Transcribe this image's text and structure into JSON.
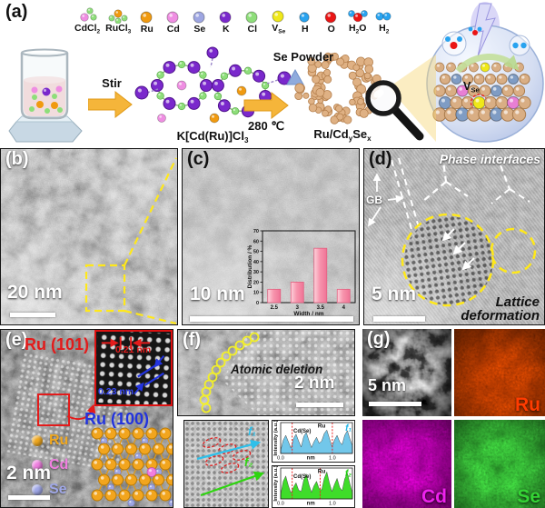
{
  "colors": {
    "ru": "#f09a10",
    "cd": "#ef8ee2",
    "se": "#9ea6e2",
    "k": "#7a28cc",
    "cl": "#8ede7a",
    "vse": "#efe81a",
    "h": "#29a3ef",
    "o": "#ea1515",
    "tan": "#dfb184",
    "annotation_yellow": "#ffe81a",
    "annotation_red": "#e31b1b",
    "annotation_blue": "#2233dd"
  },
  "panel_a": {
    "label": "(a)",
    "legend": [
      {
        "id": "cdcl2",
        "parts": [
          {
            "t": "CdCl"
          },
          {
            "t": "2",
            "sub": true
          }
        ]
      },
      {
        "id": "rucl3",
        "parts": [
          {
            "t": "RuCl"
          },
          {
            "t": "3",
            "sub": true
          }
        ]
      },
      {
        "id": "ru",
        "parts": [
          {
            "t": "Ru"
          }
        ]
      },
      {
        "id": "cd",
        "parts": [
          {
            "t": "Cd"
          }
        ]
      },
      {
        "id": "se",
        "parts": [
          {
            "t": "Se"
          }
        ]
      },
      {
        "id": "k",
        "parts": [
          {
            "t": "K"
          }
        ]
      },
      {
        "id": "cl",
        "parts": [
          {
            "t": "Cl"
          }
        ]
      },
      {
        "id": "vse",
        "parts": [
          {
            "t": "V"
          },
          {
            "t": "Se",
            "sub": true
          }
        ]
      },
      {
        "id": "h",
        "parts": [
          {
            "t": "H"
          }
        ]
      },
      {
        "id": "o",
        "parts": [
          {
            "t": "O"
          }
        ]
      },
      {
        "id": "h2o",
        "parts": [
          {
            "t": "H"
          },
          {
            "t": "2",
            "sub": true
          },
          {
            "t": "O"
          }
        ]
      },
      {
        "id": "h2",
        "parts": [
          {
            "t": "H"
          },
          {
            "t": "2",
            "sub": true
          }
        ]
      }
    ],
    "stir_label": "Stir",
    "intermediate_parts": [
      {
        "t": "K[Cd(Ru)]Cl"
      },
      {
        "t": "3",
        "sub": true
      }
    ],
    "se_powder_label": "Se Powder",
    "temperature_label": "280 ℃",
    "product_parts": [
      {
        "t": "Ru/Cd"
      },
      {
        "t": "y",
        "sub": true
      },
      {
        "t": "Se"
      },
      {
        "t": "x",
        "sub": true
      }
    ],
    "vacancy_parts": [
      {
        "t": "V"
      },
      {
        "t": "Se",
        "sub": true
      }
    ]
  },
  "panel_b": {
    "label": "(b)",
    "scale_bar": "20 nm"
  },
  "panel_c": {
    "label": "(c)",
    "scale_bar": "10 nm"
  },
  "panel_d": {
    "label": "(d)",
    "scale_bar": "5 nm",
    "phase_interfaces": "Phase interfaces",
    "grain_boundary": "GB",
    "lattice_deformation_line1": "Lattice",
    "lattice_deformation_line2": "deformation"
  },
  "panel_e": {
    "label": "(e)",
    "scale_bar": "2 nm",
    "plane_red": "Ru (101)",
    "spacing_red": "0.21 nm",
    "spacing_blue": "0.23 nm",
    "plane_blue": "Ru (100)",
    "legend": [
      {
        "label": "Ru",
        "color": "#f0a820"
      },
      {
        "label": "Cd",
        "color": "#f07fe0"
      },
      {
        "label": "Se",
        "color": "#a0a8e8"
      }
    ]
  },
  "panel_f": {
    "label": "(f)",
    "scale_bar": "2 nm",
    "atomic_deletion": "Atomic deletion"
  },
  "panel_g": {
    "label": "(g)",
    "scale_bar": "5 nm",
    "maps": [
      {
        "label": "Ru",
        "color": "#ff3c00"
      },
      {
        "label": "Cd",
        "color": "#ee22ee"
      },
      {
        "label": "Se",
        "color": "#35d435"
      }
    ]
  },
  "chart_data": [
    {
      "type": "bar",
      "categories": [
        "2.5",
        "3",
        "3.5",
        "4"
      ],
      "values": [
        13,
        20,
        53,
        13
      ],
      "title": "",
      "xlabel": "Width / nm",
      "ylabel": "Distribution / %",
      "ylim": [
        0,
        70
      ],
      "yticks": [
        0,
        10,
        20,
        30,
        40,
        50,
        60,
        70
      ],
      "bar_color": "#f795ad",
      "bar_edge": "#e0607f",
      "grid": false,
      "legend_position": "none"
    },
    {
      "type": "area",
      "name": "line profile f1",
      "series_label": "f₁",
      "color": "#72c7ea",
      "label_color": "#1fb6e8",
      "ylabel": "Intensity (a.u.)",
      "xlabel": "nm",
      "xticks": [
        "0.0",
        "1.0"
      ],
      "peak_labels": [
        "Cd(Se)",
        "Ru"
      ],
      "vlines": [
        0.16,
        0.72
      ],
      "values": [
        0.1,
        0.45,
        0.62,
        0.4,
        0.18,
        0.5,
        0.66,
        0.42,
        0.22,
        0.58,
        0.72,
        0.45,
        0.2,
        0.4,
        0.55,
        0.35,
        0.42,
        0.68,
        0.8,
        0.52,
        0.24,
        0.46,
        0.62,
        0.4,
        0.3,
        0.62,
        0.78,
        0.5,
        0.26
      ]
    },
    {
      "type": "area",
      "name": "line profile f2",
      "series_label": "f₂",
      "color": "#3fdd2a",
      "label_color": "#1ecc10",
      "ylabel": "Intensity (a.u.)",
      "xlabel": "nm",
      "xticks": [
        "0.0",
        "1.0"
      ],
      "peak_labels": [
        "Cd(Se)",
        "Ru"
      ],
      "vlines": [
        0.16,
        0.55
      ],
      "values": [
        0.15,
        0.6,
        0.78,
        0.45,
        0.2,
        0.4,
        0.55,
        0.3,
        0.25,
        0.65,
        0.85,
        0.5,
        0.22,
        0.45,
        0.6,
        0.35,
        0.3,
        0.7,
        0.92,
        0.55,
        0.25,
        0.5,
        0.7,
        0.4,
        0.28,
        0.68,
        0.88,
        0.52,
        0.2
      ]
    }
  ]
}
